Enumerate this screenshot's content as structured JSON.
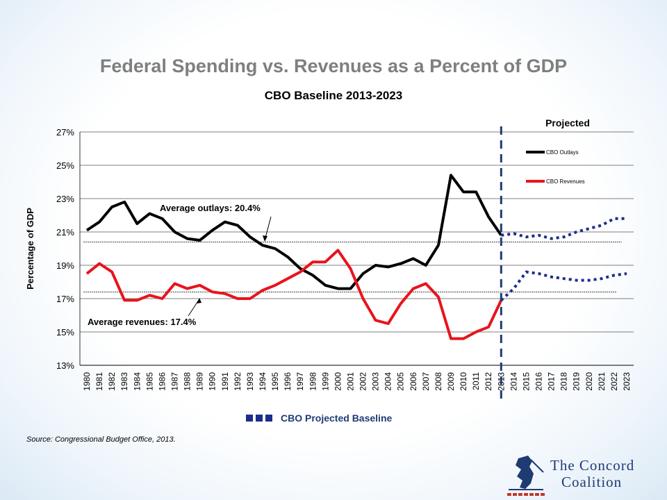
{
  "title": "Federal Spending vs. Revenues as a Percent of GDP",
  "subtitle": "CBO Baseline 2013-2023",
  "source": "Source: Congressional Budget Office, 2013.",
  "projected_label": "Projected",
  "projected_baseline_label": "CBO Projected Baseline",
  "annotation_outlays": "Average outlays: 20.4%",
  "annotation_revenues": "Average revenues: 17.4%",
  "logo": {
    "line1": "The Concord",
    "line2": "Coalition"
  },
  "colors": {
    "outlays": "#000000",
    "revenues": "#e8141b",
    "projected": "#1a2e8a",
    "divider": "#1f3b73",
    "grid": "#000000",
    "title": "#7f7f7f"
  },
  "chart_data": {
    "type": "line",
    "ylabel": "Percentage of GDP",
    "ylim": [
      13,
      27
    ],
    "yticks": [
      13,
      15,
      17,
      19,
      21,
      23,
      25,
      27
    ],
    "ytick_labels": [
      "13%",
      "15%",
      "17%",
      "19%",
      "21%",
      "23%",
      "25%",
      "27%"
    ],
    "x": [
      "1980",
      "1981",
      "1982",
      "1983",
      "1984",
      "1985",
      "1986",
      "1987",
      "1988",
      "1989",
      "1990",
      "1991",
      "1992",
      "1993",
      "1994",
      "1995",
      "1996",
      "1997",
      "1998",
      "1999",
      "2000",
      "2001",
      "2002",
      "2003",
      "2004",
      "2005",
      "2006",
      "2007",
      "2008",
      "2009",
      "2010",
      "2011",
      "2012",
      "2013",
      "2014",
      "2015",
      "2016",
      "2017",
      "2018",
      "2019",
      "2020",
      "2021",
      "2022",
      "2023"
    ],
    "projection_start": "2013",
    "average_outlays": 20.4,
    "average_revenues": 17.4,
    "grid": "horizontal",
    "legend_position": "top-right",
    "series": [
      {
        "name": "CBO Outlays",
        "values": [
          21.1,
          21.6,
          22.5,
          22.8,
          21.5,
          22.1,
          21.8,
          21.0,
          20.6,
          20.5,
          21.1,
          21.6,
          21.4,
          20.7,
          20.2,
          20.0,
          19.5,
          18.8,
          18.4,
          17.8,
          17.6,
          17.6,
          18.5,
          19.0,
          18.9,
          19.1,
          19.4,
          19.0,
          20.2,
          24.4,
          23.4,
          23.4,
          21.9,
          20.8,
          20.9,
          20.7,
          20.8,
          20.6,
          20.7,
          21.0,
          21.2,
          21.4,
          21.8,
          21.8
        ]
      },
      {
        "name": "CBO Revenues",
        "values": [
          18.5,
          19.1,
          18.6,
          16.9,
          16.9,
          17.2,
          17.0,
          17.9,
          17.6,
          17.8,
          17.4,
          17.3,
          17.0,
          17.0,
          17.5,
          17.8,
          18.2,
          18.6,
          19.2,
          19.2,
          19.9,
          18.8,
          17.0,
          15.7,
          15.5,
          16.7,
          17.6,
          17.9,
          17.1,
          14.6,
          14.6,
          15.0,
          15.3,
          16.9,
          17.6,
          18.6,
          18.5,
          18.3,
          18.2,
          18.1,
          18.1,
          18.2,
          18.4,
          18.5
        ]
      }
    ]
  }
}
